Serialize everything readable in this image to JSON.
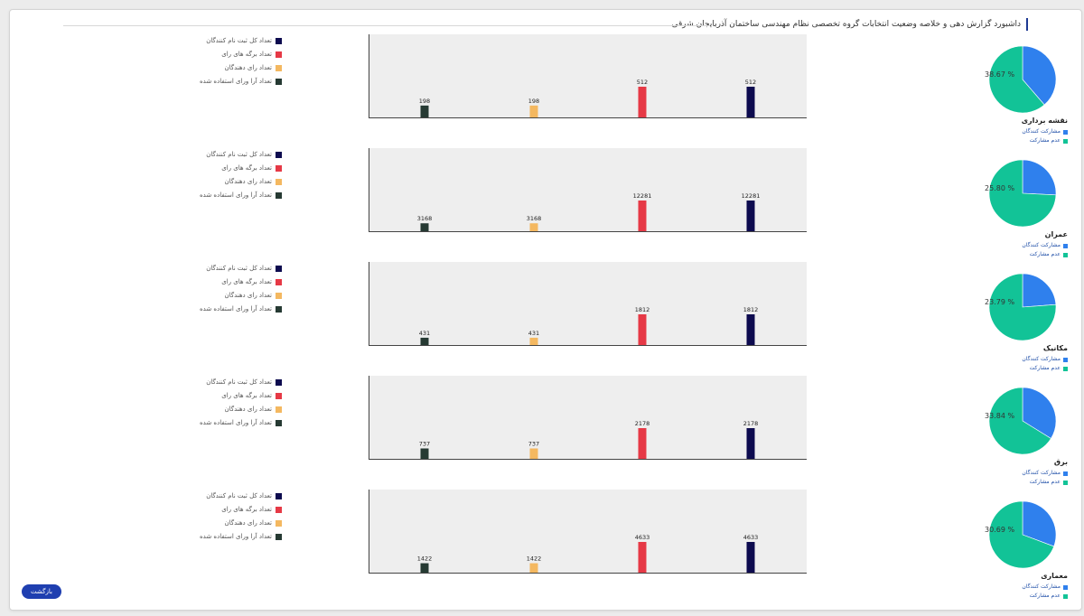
{
  "header": {
    "title": "داشبورد گزارش دهی و خلاصه وضعیت انتخابات گروه تخصصی نظام مهندسی ساختمان آذربایجان شرقی"
  },
  "back_button": {
    "label": "بازگشت"
  },
  "colors": {
    "participation": "#2f80ed",
    "non_participation": "#12c397",
    "registered": "#0d0b4f",
    "ballots": "#e63946",
    "voters": "#f4b860",
    "used_votes": "#263a33"
  },
  "chart_data": [
    {
      "type": "pie",
      "title": "نقشه برداری",
      "slices": [
        {
          "name": "مشارکت کنندگان",
          "value": 38.67
        },
        {
          "name": "عدم مشارکت",
          "value": 61.33
        }
      ],
      "pct_label": "38.67 %"
    },
    {
      "type": "bar",
      "legend": [
        "تعداد کل ثبت نام کنندگان",
        "تعداد برگه های رای",
        "تعداد رای دهندگان",
        "تعداد آرا ورای استفاده شده"
      ],
      "categories": [
        "تعداد آرا ورای استفاده شده",
        "تعداد رای دهندگان",
        "تعداد برگه های رای",
        "تعداد کل ثبت نام کنندگان"
      ],
      "values": [
        198,
        198,
        512,
        512
      ]
    },
    {
      "type": "pie",
      "title": "عمران",
      "slices": [
        {
          "name": "مشارکت کنندگان",
          "value": 25.8
        },
        {
          "name": "عدم مشارکت",
          "value": 74.2
        }
      ],
      "pct_label": "25.80 %"
    },
    {
      "type": "bar",
      "legend": [
        "تعداد کل ثبت نام کنندگان",
        "تعداد برگه های رای",
        "تعداد رای دهندگان",
        "تعداد آرا ورای استفاده شده"
      ],
      "categories": [
        "تعداد آرا ورای استفاده شده",
        "تعداد رای دهندگان",
        "تعداد برگه های رای",
        "تعداد کل ثبت نام کنندگان"
      ],
      "values": [
        3168,
        3168,
        12281,
        12281
      ]
    },
    {
      "type": "pie",
      "title": "مکانیک",
      "slices": [
        {
          "name": "مشارکت کنندگان",
          "value": 23.79
        },
        {
          "name": "عدم مشارکت",
          "value": 76.21
        }
      ],
      "pct_label": "23.79 %"
    },
    {
      "type": "bar",
      "legend": [
        "تعداد کل ثبت نام کنندگان",
        "تعداد برگه های رای",
        "تعداد رای دهندگان",
        "تعداد آرا ورای استفاده شده"
      ],
      "categories": [
        "تعداد آرا ورای استفاده شده",
        "تعداد رای دهندگان",
        "تعداد برگه های رای",
        "تعداد کل ثبت نام کنندگان"
      ],
      "values": [
        431,
        431,
        1812,
        1812
      ]
    },
    {
      "type": "pie",
      "title": "برق",
      "slices": [
        {
          "name": "مشارکت کنندگان",
          "value": 33.84
        },
        {
          "name": "عدم مشارکت",
          "value": 66.16
        }
      ],
      "pct_label": "33.84 %"
    },
    {
      "type": "bar",
      "legend": [
        "تعداد کل ثبت نام کنندگان",
        "تعداد برگه های رای",
        "تعداد رای دهندگان",
        "تعداد آرا ورای استفاده شده"
      ],
      "categories": [
        "تعداد آرا ورای استفاده شده",
        "تعداد رای دهندگان",
        "تعداد برگه های رای",
        "تعداد کل ثبت نام کنندگان"
      ],
      "values": [
        737,
        737,
        2178,
        2178
      ]
    },
    {
      "type": "pie",
      "title": "معماری",
      "slices": [
        {
          "name": "مشارکت کنندگان",
          "value": 30.69
        },
        {
          "name": "عدم مشارکت",
          "value": 69.31
        }
      ],
      "pct_label": "30.69 %"
    },
    {
      "type": "bar",
      "legend": [
        "تعداد کل ثبت نام کنندگان",
        "تعداد برگه های رای",
        "تعداد رای دهندگان",
        "تعداد آرا ورای استفاده شده"
      ],
      "categories": [
        "تعداد آرا ورای استفاده شده",
        "تعداد رای دهندگان",
        "تعداد برگه های رای",
        "تعداد کل ثبت نام کنندگان"
      ],
      "values": [
        1422,
        1422,
        4633,
        4633
      ]
    }
  ]
}
